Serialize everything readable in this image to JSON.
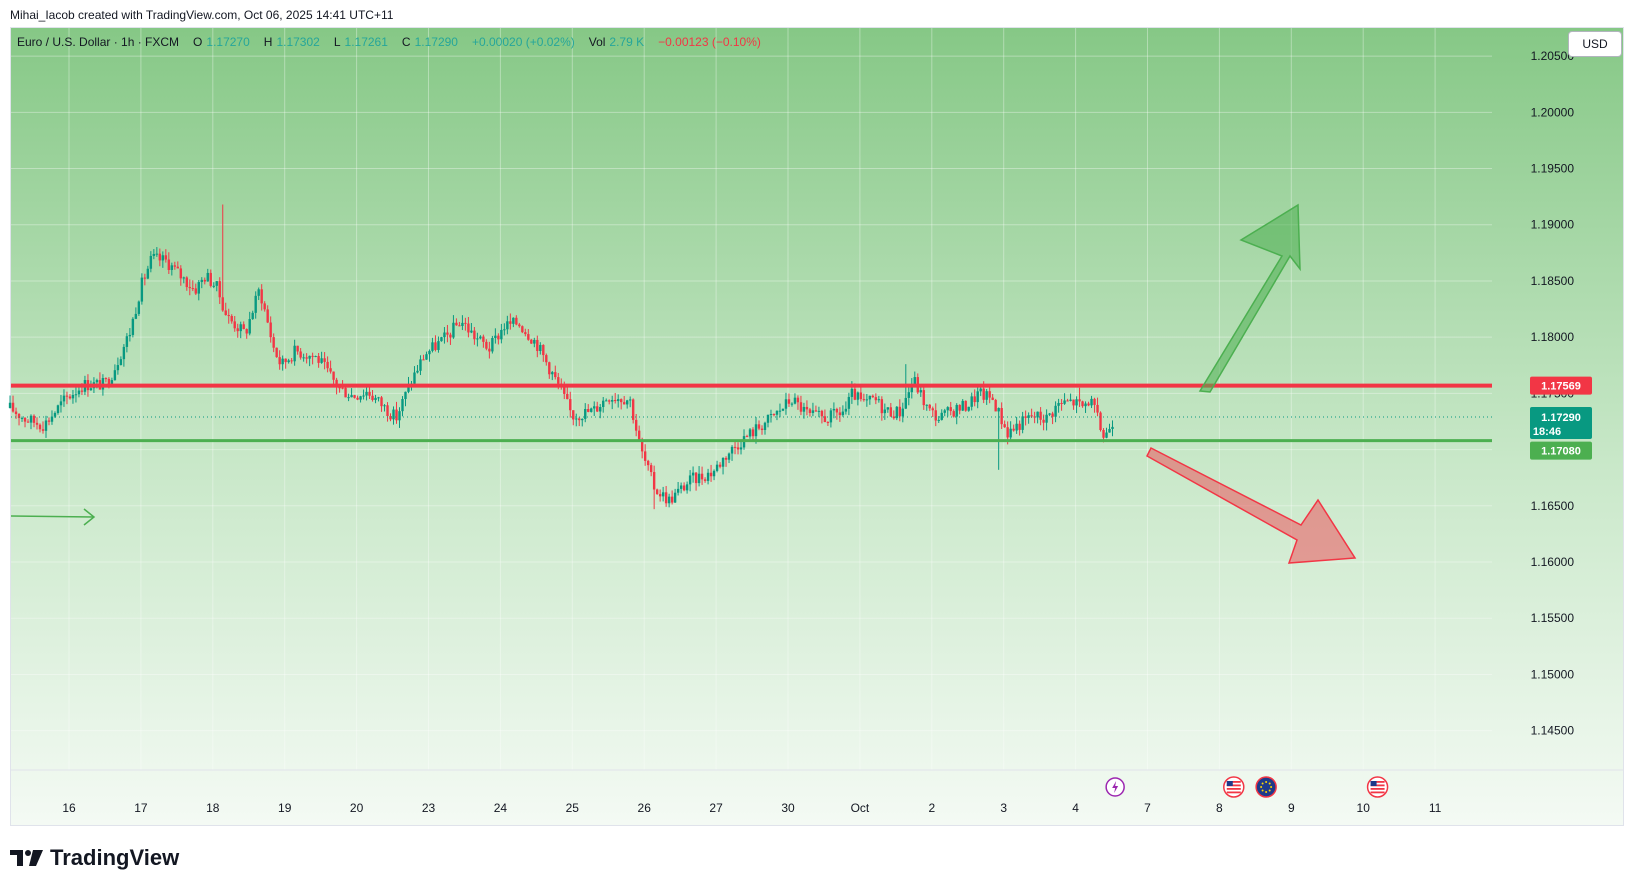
{
  "credit": "Mihai_Iacob created with TradingView.com, Oct 06, 2025 14:41 UTC+11",
  "legend": {
    "symbol": "Euro / U.S. Dollar · 1h · FXCM",
    "o_label": "O",
    "o": "1.17270",
    "h_label": "H",
    "h": "1.17302",
    "l_label": "L",
    "l": "1.17261",
    "c_label": "C",
    "c": "1.17290",
    "change": "+0.00020 (+0.02%)",
    "vol_label": "Vol",
    "vol": "2.79 K",
    "vol_change": "−0.00123 (−0.10%)"
  },
  "currency_button": "USD",
  "brand": "TradingView",
  "colors": {
    "up": "#26a69a",
    "down": "#f23645",
    "candle_up": "#089981",
    "candle_down": "#f23645",
    "resistance": "#f23645",
    "support": "#4caf50",
    "bg_top": "#86c886",
    "bg_bottom": "#f4faf4"
  },
  "price_tags": {
    "resistance": "1.17569",
    "current_price": "1.17290",
    "countdown": "18:46",
    "support": "1.17080"
  },
  "chart_data": {
    "type": "candlestick",
    "symbol": "EURUSD",
    "timeframe": "1h",
    "ylim": [
      1.1415,
      1.2075
    ],
    "y_ticks": [
      "1.14500",
      "1.15000",
      "1.15500",
      "1.16000",
      "1.16500",
      "1.17000",
      "1.17500",
      "1.18000",
      "1.18500",
      "1.19000",
      "1.19500",
      "1.20000",
      "1.20500"
    ],
    "x_ticks": [
      "16",
      "17",
      "18",
      "19",
      "20",
      "23",
      "24",
      "25",
      "26",
      "27",
      "30",
      "Oct",
      "2",
      "3",
      "4",
      "7",
      "8",
      "9",
      "10",
      "11"
    ],
    "x_tick_index": [
      0,
      1,
      2,
      3,
      4,
      5,
      6,
      7,
      8,
      9,
      10,
      11,
      12,
      13,
      14,
      15,
      16,
      17,
      18,
      19
    ],
    "horizontal_lines": [
      {
        "name": "resistance",
        "price": 1.17569
      },
      {
        "name": "support",
        "price": 1.1708
      }
    ],
    "current_price": 1.1729,
    "path_ends_at_index": 14.55,
    "path": [
      [
        -0.82,
        1.1737
      ],
      [
        -0.6,
        1.1727
      ],
      [
        -0.35,
        1.1722
      ],
      [
        -0.05,
        1.1745
      ],
      [
        0.2,
        1.1758
      ],
      [
        0.5,
        1.1758
      ],
      [
        0.6,
        1.1768
      ],
      [
        0.85,
        1.1805
      ],
      [
        1.0,
        1.1845
      ],
      [
        1.15,
        1.187
      ],
      [
        1.35,
        1.1868
      ],
      [
        1.5,
        1.1858
      ],
      [
        1.75,
        1.1842
      ],
      [
        1.9,
        1.1855
      ],
      [
        2.05,
        1.1845
      ],
      [
        2.2,
        1.1818
      ],
      [
        2.45,
        1.1803
      ],
      [
        2.65,
        1.1843
      ],
      [
        2.85,
        1.179
      ],
      [
        2.95,
        1.1775
      ],
      [
        3.15,
        1.1788
      ],
      [
        3.45,
        1.1782
      ],
      [
        3.75,
        1.1755
      ],
      [
        3.95,
        1.1748
      ],
      [
        4.15,
        1.1752
      ],
      [
        4.35,
        1.174
      ],
      [
        4.55,
        1.1728
      ],
      [
        4.75,
        1.176
      ],
      [
        4.95,
        1.1785
      ],
      [
        5.25,
        1.18
      ],
      [
        5.45,
        1.1815
      ],
      [
        5.65,
        1.18
      ],
      [
        5.85,
        1.179
      ],
      [
        6.05,
        1.181
      ],
      [
        6.25,
        1.1813
      ],
      [
        6.5,
        1.1795
      ],
      [
        6.8,
        1.1758
      ],
      [
        7.0,
        1.173
      ],
      [
        7.3,
        1.1735
      ],
      [
        7.5,
        1.1748
      ],
      [
        7.8,
        1.1745
      ],
      [
        7.95,
        1.17
      ],
      [
        8.15,
        1.1665
      ],
      [
        8.35,
        1.1655
      ],
      [
        8.65,
        1.1673
      ],
      [
        8.95,
        1.168
      ],
      [
        9.15,
        1.1696
      ],
      [
        9.35,
        1.1708
      ],
      [
        9.55,
        1.1718
      ],
      [
        9.8,
        1.173
      ],
      [
        10.05,
        1.1745
      ],
      [
        10.3,
        1.173
      ],
      [
        10.55,
        1.1728
      ],
      [
        10.8,
        1.1735
      ],
      [
        10.9,
        1.175
      ],
      [
        11.05,
        1.174
      ],
      [
        11.2,
        1.1745
      ],
      [
        11.35,
        1.1735
      ],
      [
        11.55,
        1.1733
      ],
      [
        11.75,
        1.1762
      ],
      [
        11.95,
        1.1735
      ],
      [
        12.1,
        1.1728
      ],
      [
        12.3,
        1.1735
      ],
      [
        12.5,
        1.174
      ],
      [
        12.65,
        1.175
      ],
      [
        12.85,
        1.1745
      ],
      [
        13.05,
        1.1715
      ],
      [
        13.2,
        1.1722
      ],
      [
        13.4,
        1.173
      ],
      [
        13.6,
        1.1728
      ],
      [
        13.75,
        1.174
      ],
      [
        13.95,
        1.1743
      ],
      [
        14.1,
        1.1738
      ],
      [
        14.2,
        1.1745
      ],
      [
        14.3,
        1.1728
      ],
      [
        14.4,
        1.171
      ],
      [
        14.5,
        1.1725
      ],
      [
        14.55,
        1.1729
      ]
    ],
    "spikes": [
      {
        "index": 2.15,
        "high": 1.1918
      },
      {
        "index": 12.95,
        "low": 1.1682
      },
      {
        "index": 8.15,
        "low": 1.1647
      },
      {
        "index": 11.65,
        "high": 1.1776
      },
      {
        "index": 14.05,
        "high": 1.1755
      }
    ],
    "annotations": [
      {
        "type": "arrow",
        "name": "bullish-projection",
        "direction": "up",
        "color": "#4caf50"
      },
      {
        "type": "arrow",
        "name": "bearish-projection",
        "direction": "down",
        "color": "#f23645"
      },
      {
        "type": "arrow",
        "name": "left-pointer",
        "direction": "right",
        "color": "#4caf50"
      }
    ],
    "events": [
      {
        "name": "flash-event-icon",
        "index": 14.55
      },
      {
        "name": "us-flag-event-icon",
        "index": 16.2
      },
      {
        "name": "eu-flag-event-icon",
        "index": 16.65
      },
      {
        "name": "us-flag-event-icon",
        "index": 18.2
      }
    ]
  }
}
